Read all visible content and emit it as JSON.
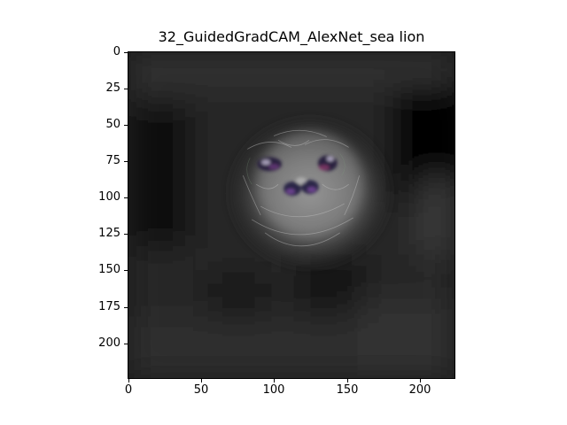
{
  "figure": {
    "title": "32_GuidedGradCAM_AlexNet_sea lion"
  },
  "axes": {
    "x_ticks": [
      "0",
      "50",
      "100",
      "150",
      "200"
    ],
    "y_ticks": [
      "0",
      "25",
      "50",
      "75",
      "100",
      "125",
      "150",
      "175",
      "200"
    ]
  },
  "image": {
    "description_colors": {
      "background": "#1b1b1b",
      "glow": "#8e8e8e",
      "feature_purple": "#5a4a8a"
    }
  }
}
